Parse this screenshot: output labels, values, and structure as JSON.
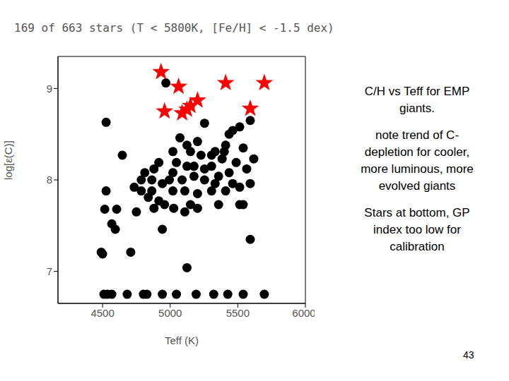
{
  "chart_data": {
    "type": "scatter",
    "title": "169 of 663 stars (T < 5800K, [Fe/H] < -1.5 dex)",
    "x_label": "Teff (K)",
    "y_label": "log[ε(C)]",
    "xlim": [
      4170,
      6000
    ],
    "xticks": [
      4500,
      5000,
      5500,
      6000
    ],
    "ylim": [
      6.65,
      9.35
    ],
    "yticks": [
      7,
      8,
      9
    ],
    "series": [
      {
        "color": "#000000",
        "marker": "circle",
        "x": [
          4510,
          4536,
          4568,
          4682,
          4802,
          4828,
          4942,
          5046,
          5192,
          5322,
          5426,
          5540,
          5696,
          4968,
          4526,
          4646,
          4526,
          4516,
          4604,
          4490,
          4500,
          4708,
          4568,
          4594,
          4750,
          4786,
          4812,
          4880,
          4864,
          4942,
          4880,
          4958,
          5026,
          5124,
          5108,
          5202,
          5072,
          5254,
          5436,
          5540,
          5410,
          5462,
          5514,
          5592,
          5384,
          5332,
          5306,
          5228,
          5150,
          5124,
          5046,
          5020,
          4994,
          5088,
          5176,
          5254,
          5358,
          5436,
          5488,
          5566,
          5618,
          5592,
          5514,
          5410,
          5306,
          5202,
          5108,
          5020,
          4942,
          4864,
          4786,
          4734,
          4838,
          4916,
          5150,
          5358,
          5514,
          5540,
          5592,
          5306,
          5400,
          5124,
          5202,
          5020,
          4916,
          5462,
          5254,
          5332,
          5176
        ],
        "values": [
          6.75,
          6.75,
          6.75,
          6.75,
          6.75,
          6.75,
          6.75,
          6.75,
          6.75,
          6.75,
          6.75,
          6.75,
          6.75,
          9.06,
          8.63,
          8.27,
          7.88,
          7.68,
          7.68,
          7.21,
          7.19,
          7.21,
          7.52,
          7.46,
          7.65,
          7.88,
          8.08,
          8.12,
          7.88,
          7.46,
          7.69,
          7.73,
          7.69,
          7.04,
          7.65,
          7.69,
          8.46,
          8.62,
          8.5,
          8.35,
          8.38,
          8.54,
          8.58,
          8.65,
          8.23,
          8.31,
          8.15,
          8.27,
          8.31,
          8.15,
          8.19,
          8.08,
          8.0,
          8.0,
          8.04,
          8.0,
          8.04,
          8.08,
          8.19,
          8.12,
          8.23,
          7.96,
          7.92,
          7.88,
          7.88,
          7.85,
          7.88,
          7.88,
          7.96,
          8.0,
          8.0,
          7.92,
          7.81,
          7.77,
          7.73,
          7.73,
          7.73,
          7.73,
          7.35,
          8.27,
          8.31,
          8.38,
          8.42,
          8.31,
          8.19,
          7.96,
          8.12,
          7.96,
          8.15
        ]
      },
      {
        "color": "#ff0000",
        "marker": "star",
        "x": [
          4932,
          5062,
          5202,
          5150,
          4958,
          5088,
          5124,
          5410,
          5696,
          5592
        ],
        "values": [
          9.18,
          9.02,
          8.87,
          8.81,
          8.75,
          8.73,
          8.77,
          9.06,
          9.06,
          8.78
        ]
      }
    ],
    "annotations": [
      "C/H  vs Teff for EMP giants.",
      "note trend of C-depletion for cooler, more luminous, more evolved giants",
      "Stars at bottom, GP index too low for calibration"
    ],
    "page": "43"
  }
}
